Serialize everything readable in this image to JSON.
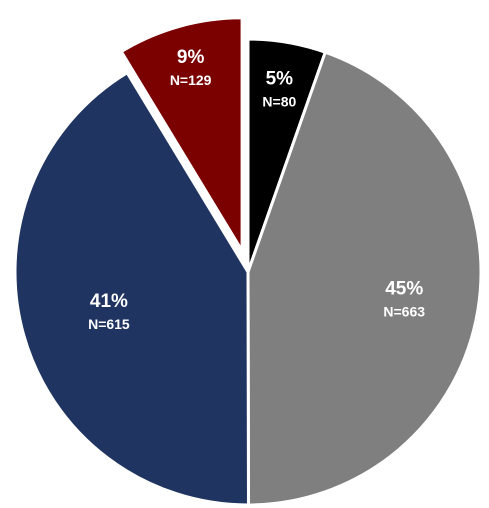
{
  "chart_data": {
    "type": "pie",
    "title": "",
    "slices": [
      {
        "pct_label": "5%",
        "n_label": "N=80",
        "value": 80,
        "color": "#000000",
        "exploded": false
      },
      {
        "pct_label": "45%",
        "n_label": "N=663",
        "value": 663,
        "color": "#7f7f7f",
        "exploded": false
      },
      {
        "pct_label": "41%",
        "n_label": "N=615",
        "value": 615,
        "color": "#1f3460",
        "exploded": false
      },
      {
        "pct_label": "9%",
        "n_label": "N=129",
        "value": 129,
        "color": "#7b0000",
        "exploded": true
      }
    ],
    "start": "12 o'clock",
    "direction": "clockwise",
    "legend": "none",
    "slice_border_color": "#ffffff"
  }
}
